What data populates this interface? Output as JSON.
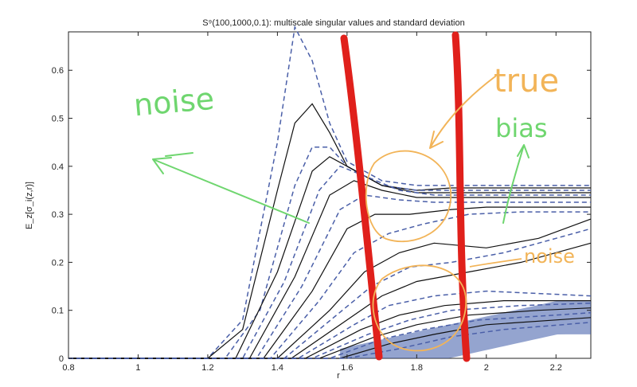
{
  "chart_data": {
    "type": "line",
    "title": "S⁹(100,1000,0.1): multiscale singular values and standard deviation",
    "xlabel": "r",
    "ylabel": "E_z[σ_i(z,r)]",
    "xlim": [
      0.8,
      2.3
    ],
    "ylim": [
      0,
      0.68
    ],
    "x_ticks": [
      "0.8",
      "1",
      "1.2",
      "1.4",
      "1.6",
      "1.8",
      "2",
      "2.2"
    ],
    "y_ticks": [
      "0",
      "0.1",
      "0.2",
      "0.3",
      "0.4",
      "0.5",
      "0.6"
    ],
    "grid": false,
    "series": [
      {
        "style": "dashed",
        "x": [
          0.8,
          1.2,
          1.3,
          1.4,
          1.45,
          1.5,
          1.55,
          1.6,
          1.7,
          1.8,
          1.9,
          2.0,
          2.2,
          2.3
        ],
        "y": [
          0,
          0.0,
          0.08,
          0.45,
          0.69,
          0.62,
          0.49,
          0.41,
          0.37,
          0.36,
          0.36,
          0.36,
          0.36,
          0.36
        ]
      },
      {
        "style": "solid",
        "x": [
          0.8,
          1.2,
          1.3,
          1.4,
          1.45,
          1.5,
          1.55,
          1.6,
          1.7,
          1.8,
          1.9,
          2.0,
          2.2,
          2.3
        ],
        "y": [
          0,
          0.0,
          0.06,
          0.35,
          0.49,
          0.53,
          0.47,
          0.4,
          0.36,
          0.35,
          0.355,
          0.355,
          0.355,
          0.355
        ]
      },
      {
        "style": "dashed",
        "x": [
          0.8,
          1.25,
          1.35,
          1.45,
          1.5,
          1.55,
          1.6,
          1.7,
          1.8,
          1.9,
          2.0,
          2.2,
          2.3
        ],
        "y": [
          0,
          0.0,
          0.1,
          0.36,
          0.44,
          0.44,
          0.4,
          0.36,
          0.35,
          0.35,
          0.35,
          0.35,
          0.35
        ]
      },
      {
        "style": "solid",
        "x": [
          0.8,
          1.28,
          1.4,
          1.5,
          1.55,
          1.6,
          1.7,
          1.8,
          1.9,
          2.0,
          2.2,
          2.3
        ],
        "y": [
          0,
          0.0,
          0.18,
          0.39,
          0.42,
          0.4,
          0.36,
          0.345,
          0.345,
          0.345,
          0.345,
          0.345
        ]
      },
      {
        "style": "dashed",
        "x": [
          0.8,
          1.3,
          1.42,
          1.52,
          1.58,
          1.65,
          1.75,
          1.85,
          2.0,
          2.2,
          2.3
        ],
        "y": [
          0,
          0.0,
          0.16,
          0.35,
          0.4,
          0.38,
          0.35,
          0.34,
          0.34,
          0.34,
          0.34
        ]
      },
      {
        "style": "solid",
        "x": [
          0.8,
          1.32,
          1.45,
          1.55,
          1.62,
          1.7,
          1.8,
          1.9,
          2.0,
          2.2,
          2.3
        ],
        "y": [
          0,
          0.0,
          0.17,
          0.34,
          0.37,
          0.35,
          0.335,
          0.335,
          0.335,
          0.335,
          0.335
        ]
      },
      {
        "style": "dashed",
        "x": [
          0.8,
          1.34,
          1.47,
          1.58,
          1.65,
          1.75,
          1.85,
          2.0,
          2.2,
          2.3
        ],
        "y": [
          0,
          0.0,
          0.15,
          0.31,
          0.34,
          0.33,
          0.325,
          0.325,
          0.325,
          0.325
        ]
      },
      {
        "style": "solid",
        "x": [
          0.8,
          1.36,
          1.5,
          1.6,
          1.68,
          1.78,
          1.9,
          2.0,
          2.2,
          2.3
        ],
        "y": [
          0,
          0.0,
          0.14,
          0.27,
          0.3,
          0.3,
          0.31,
          0.315,
          0.315,
          0.315
        ]
      },
      {
        "style": "dashed",
        "x": [
          0.8,
          1.38,
          1.52,
          1.62,
          1.72,
          1.82,
          1.95,
          2.1,
          2.3
        ],
        "y": [
          0,
          0.0,
          0.12,
          0.22,
          0.26,
          0.28,
          0.3,
          0.305,
          0.305
        ]
      },
      {
        "style": "solid",
        "x": [
          0.8,
          1.4,
          1.55,
          1.65,
          1.75,
          1.85,
          2.0,
          2.15,
          2.3
        ],
        "y": [
          0,
          0.0,
          0.1,
          0.18,
          0.22,
          0.24,
          0.23,
          0.25,
          0.29
        ]
      },
      {
        "style": "dashed",
        "x": [
          0.8,
          1.42,
          1.57,
          1.67,
          1.78,
          1.9,
          2.05,
          2.2,
          2.3
        ],
        "y": [
          0,
          0.0,
          0.09,
          0.15,
          0.19,
          0.2,
          0.22,
          0.25,
          0.27
        ]
      },
      {
        "style": "solid",
        "x": [
          0.8,
          1.44,
          1.6,
          1.7,
          1.8,
          1.95,
          2.1,
          2.3
        ],
        "y": [
          0,
          0.0,
          0.08,
          0.13,
          0.16,
          0.18,
          0.2,
          0.24
        ]
      },
      {
        "style": "dashed",
        "x": [
          0.8,
          1.46,
          1.62,
          1.72,
          1.85,
          2.0,
          2.3
        ],
        "y": [
          0,
          0.0,
          0.07,
          0.11,
          0.13,
          0.14,
          0.13
        ]
      },
      {
        "style": "solid",
        "x": [
          0.8,
          1.48,
          1.64,
          1.75,
          1.88,
          2.05,
          2.3
        ],
        "y": [
          0,
          0.0,
          0.06,
          0.09,
          0.11,
          0.12,
          0.12
        ]
      },
      {
        "style": "dashed",
        "x": [
          0.8,
          1.5,
          1.66,
          1.78,
          1.9,
          2.1,
          2.3
        ],
        "y": [
          0,
          0.0,
          0.05,
          0.08,
          0.1,
          0.11,
          0.115
        ]
      },
      {
        "style": "solid",
        "x": [
          0.8,
          1.52,
          1.68,
          1.8,
          1.95,
          2.15,
          2.3
        ],
        "y": [
          0,
          0.0,
          0.045,
          0.07,
          0.09,
          0.1,
          0.105
        ]
      },
      {
        "style": "dashed",
        "x": [
          0.8,
          1.55,
          1.7,
          1.82,
          1.98,
          2.2,
          2.3
        ],
        "y": [
          0,
          0.0,
          0.04,
          0.06,
          0.08,
          0.09,
          0.095
        ]
      },
      {
        "style": "solid",
        "x": [
          0.8,
          1.58,
          1.72,
          1.85,
          2.0,
          2.2,
          2.3
        ],
        "y": [
          0,
          0.0,
          0.03,
          0.05,
          0.07,
          0.08,
          0.085
        ]
      },
      {
        "style": "dashed",
        "x": [
          0.8,
          1.6,
          1.75,
          1.9,
          2.05,
          2.3
        ],
        "y": [
          0,
          0.0,
          0.02,
          0.045,
          0.06,
          0.075
        ]
      }
    ]
  },
  "annotations": {
    "noise_left": "noise",
    "true_label": "true",
    "bias_label": "bias",
    "noise_right": "noise"
  },
  "colors": {
    "dashed_series": "#4a5fa8",
    "solid_series": "#111111",
    "band_fill": "#3d5aa8",
    "marker_red": "#e0201b",
    "ink_green": "#6fd66f",
    "ink_orange": "#f2b458"
  }
}
